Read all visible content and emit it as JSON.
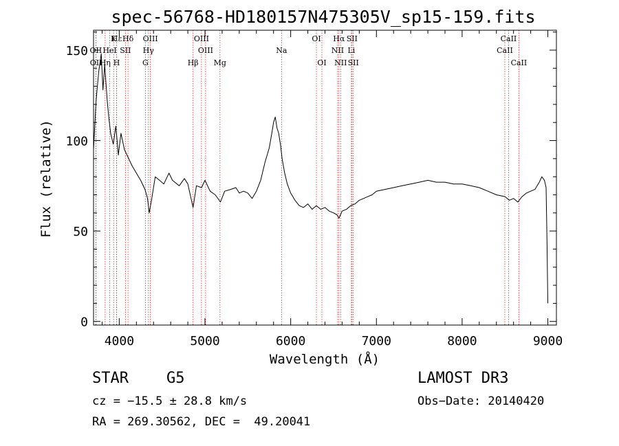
{
  "chart_data": {
    "type": "line",
    "title": "spec-56768-HD180157N475305V_sp15-159.fits",
    "xlabel": "Wavelength (Å)",
    "ylabel": "Flux (relative)",
    "xlim": [
      3700,
      9100
    ],
    "ylim": [
      -2,
      161
    ],
    "xticks": [
      4000,
      5000,
      6000,
      7000,
      8000,
      9000
    ],
    "yticks": [
      0,
      50,
      100,
      150
    ],
    "xtick_labels": [
      "4000",
      "5000",
      "6000",
      "7000",
      "8000",
      "9000"
    ],
    "ytick_labels": [
      "0",
      "50",
      "100",
      "150"
    ],
    "grid": false,
    "legend": "none",
    "series": [
      {
        "name": "flux",
        "color": "#000000",
        "points": [
          [
            3700,
            95
          ],
          [
            3730,
            122
          ],
          [
            3760,
            138
          ],
          [
            3790,
            148
          ],
          [
            3810,
            128
          ],
          [
            3830,
            142
          ],
          [
            3860,
            122
          ],
          [
            3880,
            112
          ],
          [
            3900,
            104
          ],
          [
            3930,
            98
          ],
          [
            3960,
            108
          ],
          [
            3990,
            92
          ],
          [
            4020,
            104
          ],
          [
            4060,
            95
          ],
          [
            4100,
            91
          ],
          [
            4150,
            86
          ],
          [
            4200,
            82
          ],
          [
            4250,
            78
          ],
          [
            4300,
            73
          ],
          [
            4330,
            68
          ],
          [
            4350,
            60
          ],
          [
            4380,
            68
          ],
          [
            4420,
            80
          ],
          [
            4470,
            78
          ],
          [
            4520,
            76
          ],
          [
            4580,
            82
          ],
          [
            4620,
            78
          ],
          [
            4700,
            75
          ],
          [
            4760,
            79
          ],
          [
            4800,
            76
          ],
          [
            4861,
            63
          ],
          [
            4900,
            75
          ],
          [
            4960,
            74
          ],
          [
            5000,
            78
          ],
          [
            5060,
            72
          ],
          [
            5120,
            70
          ],
          [
            5180,
            66
          ],
          [
            5230,
            72
          ],
          [
            5300,
            73
          ],
          [
            5360,
            74
          ],
          [
            5400,
            71
          ],
          [
            5450,
            72
          ],
          [
            5500,
            71
          ],
          [
            5550,
            68
          ],
          [
            5600,
            72
          ],
          [
            5650,
            78
          ],
          [
            5700,
            88
          ],
          [
            5750,
            96
          ],
          [
            5780,
            104
          ],
          [
            5800,
            110
          ],
          [
            5820,
            113
          ],
          [
            5840,
            107
          ],
          [
            5860,
            104
          ],
          [
            5880,
            98
          ],
          [
            5900,
            90
          ],
          [
            5930,
            82
          ],
          [
            5960,
            76
          ],
          [
            6000,
            71
          ],
          [
            6050,
            67
          ],
          [
            6100,
            64
          ],
          [
            6150,
            63
          ],
          [
            6200,
            65
          ],
          [
            6250,
            62
          ],
          [
            6300,
            64
          ],
          [
            6350,
            62
          ],
          [
            6400,
            63
          ],
          [
            6450,
            61
          ],
          [
            6500,
            60
          ],
          [
            6540,
            59
          ],
          [
            6563,
            57
          ],
          [
            6600,
            61
          ],
          [
            6650,
            62
          ],
          [
            6700,
            64
          ],
          [
            6750,
            65
          ],
          [
            6800,
            67
          ],
          [
            6850,
            68
          ],
          [
            6900,
            69
          ],
          [
            6950,
            70
          ],
          [
            7000,
            72
          ],
          [
            7100,
            73
          ],
          [
            7200,
            74
          ],
          [
            7300,
            75
          ],
          [
            7400,
            76
          ],
          [
            7500,
            77
          ],
          [
            7600,
            78
          ],
          [
            7700,
            77
          ],
          [
            7800,
            77
          ],
          [
            7900,
            76
          ],
          [
            8000,
            76
          ],
          [
            8100,
            75
          ],
          [
            8200,
            74
          ],
          [
            8300,
            72
          ],
          [
            8400,
            70
          ],
          [
            8500,
            69
          ],
          [
            8550,
            67
          ],
          [
            8600,
            68
          ],
          [
            8650,
            66
          ],
          [
            8700,
            69
          ],
          [
            8750,
            71
          ],
          [
            8800,
            72
          ],
          [
            8850,
            73
          ],
          [
            8900,
            77
          ],
          [
            8930,
            80
          ],
          [
            8960,
            78
          ],
          [
            8980,
            74
          ],
          [
            8990,
            45
          ],
          [
            9000,
            10
          ]
        ]
      }
    ],
    "line_markers": [
      {
        "label": "Hε",
        "wavelength": 3970,
        "row": 0
      },
      {
        "label": "K",
        "wavelength": 3934,
        "row": 0
      },
      {
        "label": "Hδ",
        "wavelength": 4102,
        "row": 0
      },
      {
        "label": "OIII",
        "wavelength": 4363,
        "row": 0
      },
      {
        "label": "OIII",
        "wavelength": 4959,
        "row": 0
      },
      {
        "label": "OI",
        "wavelength": 6300,
        "row": 0
      },
      {
        "label": "Hα",
        "wavelength": 6563,
        "row": 0
      },
      {
        "label": "SII",
        "wavelength": 6716,
        "row": 0
      },
      {
        "label": "CaII",
        "wavelength": 8542,
        "row": 0
      },
      {
        "label": "OII",
        "wavelength": 3727,
        "row": 1
      },
      {
        "label": "HeI",
        "wavelength": 3889,
        "row": 1
      },
      {
        "label": "SII",
        "wavelength": 4072,
        "row": 1
      },
      {
        "label": "Hγ",
        "wavelength": 4340,
        "row": 1
      },
      {
        "label": "OIII",
        "wavelength": 5007,
        "row": 1
      },
      {
        "label": "Na",
        "wavelength": 5893,
        "row": 1
      },
      {
        "label": "NII",
        "wavelength": 6548,
        "row": 1
      },
      {
        "label": "Li",
        "wavelength": 6708,
        "row": 1
      },
      {
        "label": "CaII",
        "wavelength": 8498,
        "row": 1
      },
      {
        "label": "OII",
        "wavelength": 3729,
        "row": 2
      },
      {
        "label": "Hη",
        "wavelength": 3835,
        "row": 2
      },
      {
        "label": "H",
        "wavelength": 3969,
        "row": 2
      },
      {
        "label": "G",
        "wavelength": 4305,
        "row": 2
      },
      {
        "label": "Hβ",
        "wavelength": 4861,
        "row": 2
      },
      {
        "label": "Mg",
        "wavelength": 5175,
        "row": 2
      },
      {
        "label": "OI",
        "wavelength": 6364,
        "row": 2
      },
      {
        "label": "NII",
        "wavelength": 6583,
        "row": 2
      },
      {
        "label": "SII",
        "wavelength": 6731,
        "row": 2
      },
      {
        "label": "CaII",
        "wavelength": 8662,
        "row": 2
      }
    ],
    "colors": {
      "line": "#000000",
      "markers": "#cc2a2a",
      "axes": "#000000"
    }
  },
  "info": {
    "object_class": "STAR",
    "subclass": "G5",
    "survey": "LAMOST DR3",
    "velocity": "cz = −15.5 ± 28.8 km/s",
    "obs_date": "Obs−Date: 20140420",
    "coordinates": "RA = 269.30562, DEC =  49.20041"
  }
}
